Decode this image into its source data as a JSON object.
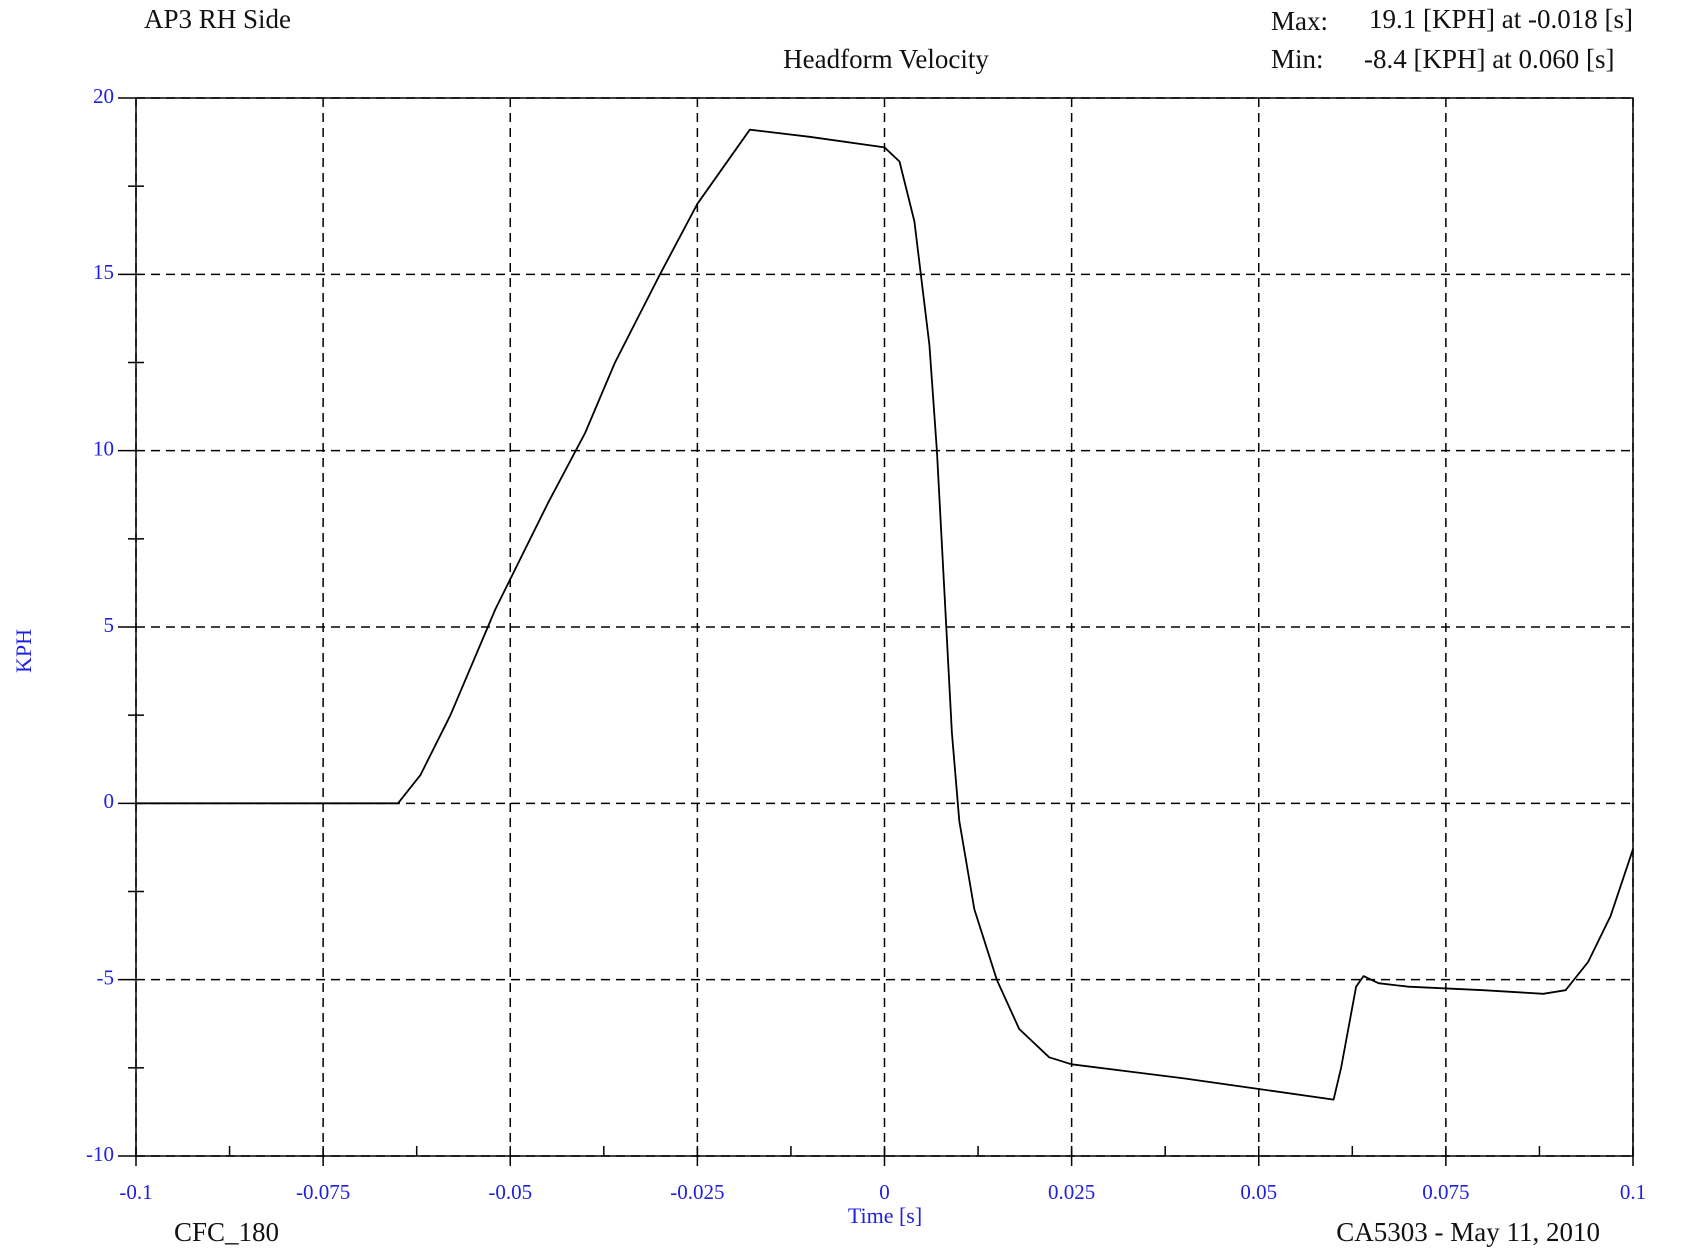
{
  "chart_data": {
    "type": "line",
    "title": "Headform Velocity",
    "subtitle": "AP3 RH Side",
    "annotations": {
      "max_label": "Max:",
      "max_text": "19.1 [KPH] at -0.018 [s]",
      "min_label": "Min:",
      "min_text": "-8.4 [KPH] at 0.060 [s]",
      "filter": "CFC_180",
      "test": "CA5303 - May 11, 2010"
    },
    "xlabel": "Time [s]",
    "ylabel": "KPH",
    "x": [
      -0.1,
      -0.065,
      -0.062,
      -0.058,
      -0.052,
      -0.045,
      -0.04,
      -0.036,
      -0.03,
      -0.025,
      -0.018,
      -0.01,
      0,
      0.002,
      0.004,
      0.006,
      0.007,
      0.008,
      0.009,
      0.01,
      0.012,
      0.015,
      0.018,
      0.022,
      0.025,
      0.04,
      0.05,
      0.06,
      0.061,
      0.063,
      0.064,
      0.066,
      0.07,
      0.08,
      0.088,
      0.091,
      0.094,
      0.097,
      0.1
    ],
    "series": [
      {
        "name": "Headform Velocity",
        "color": "#000000",
        "values": [
          0,
          0,
          0.8,
          2.5,
          5.5,
          8.5,
          10.5,
          12.5,
          15,
          17,
          19.1,
          18.9,
          18.6,
          18.2,
          16.5,
          13,
          10,
          6,
          2,
          -0.5,
          -3,
          -5,
          -6.4,
          -7.2,
          -7.4,
          -7.8,
          -8.1,
          -8.4,
          -7.5,
          -5.2,
          -4.9,
          -5.1,
          -5.2,
          -5.3,
          -5.4,
          -5.3,
          -4.5,
          -3.2,
          -1.3
        ]
      }
    ],
    "xlim": [
      -0.1,
      0.1
    ],
    "ylim": [
      -10,
      20
    ],
    "xticks": [
      -0.1,
      -0.075,
      -0.05,
      -0.025,
      0,
      0.025,
      0.05,
      0.075,
      0.1
    ],
    "yticks": [
      -10,
      -5,
      0,
      5,
      10,
      15,
      20
    ],
    "xminorticks": [
      -0.0875,
      -0.0625,
      -0.0375,
      -0.0125,
      0.0125,
      0.0375,
      0.0625,
      0.0875
    ],
    "yminorticks": [
      -7.5,
      -2.5,
      2.5,
      7.5,
      12.5,
      17.5
    ],
    "grid": true
  }
}
